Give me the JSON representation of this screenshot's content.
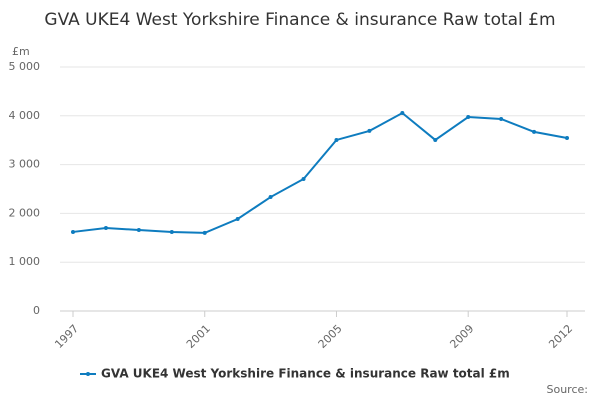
{
  "chart_data": {
    "type": "line",
    "title": "GVA UKE4 West Yorkshire Finance & insurance Raw total £m",
    "y_unit": "£m",
    "source": "Source:",
    "x": [
      1997,
      1998,
      1999,
      2000,
      2001,
      2002,
      2003,
      2004,
      2005,
      2006,
      2007,
      2008,
      2009,
      2010,
      2011,
      2012
    ],
    "series": [
      {
        "name": "GVA UKE4 West Yorkshire Finance & insurance Raw total £m",
        "color": "#0e7cbf",
        "values": [
          1620,
          1700,
          1660,
          1620,
          1600,
          1885,
          2335,
          2705,
          3505,
          3690,
          4057,
          3505,
          3975,
          3935,
          3670,
          3545
        ]
      }
    ],
    "xlim": [
      1997,
      2012
    ],
    "xticks": [
      1997,
      2001,
      2005,
      2009,
      2012
    ],
    "ylim": [
      0,
      5000
    ],
    "yticks": [
      0,
      {
        "value": 1000,
        "label": "1 000"
      },
      {
        "value": 2000,
        "label": "2 000"
      },
      {
        "value": 3000,
        "label": "3 000"
      },
      {
        "value": 4000,
        "label": "4 000"
      },
      {
        "value": 5000,
        "label": "5 000"
      }
    ],
    "grid": true
  }
}
